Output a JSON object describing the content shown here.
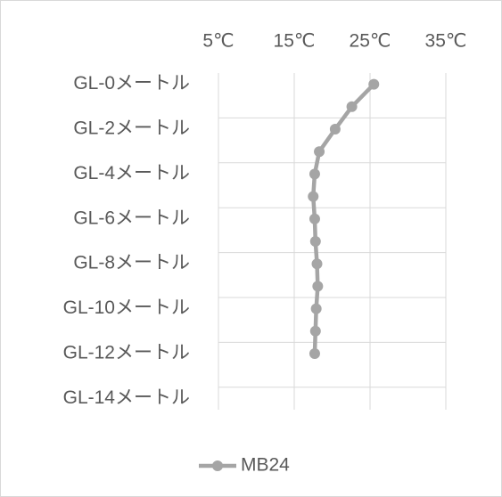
{
  "chart_data": {
    "type": "line",
    "orientation": "horizontal",
    "categories": [
      "GL-0メートル",
      null,
      "GL-2メートル",
      null,
      "GL-4メートル",
      null,
      "GL-6メートル",
      null,
      "GL-8メートル",
      null,
      "GL-10メートル",
      null,
      "GL-12メートル",
      null,
      "GL-14メートル"
    ],
    "series": [
      {
        "name": "MB24",
        "color": "#a5a5a5",
        "values": [
          25.5,
          22.6,
          20.4,
          18.3,
          17.7,
          17.5,
          17.7,
          17.8,
          18.0,
          18.1,
          17.9,
          17.8,
          17.7,
          null,
          null
        ]
      }
    ],
    "xlim": [
      5,
      35
    ],
    "xticks": [
      {
        "value": 5,
        "label": "5℃"
      },
      {
        "value": 15,
        "label": "15℃"
      },
      {
        "value": 25,
        "label": "25℃"
      },
      {
        "value": 35,
        "label": "35℃"
      }
    ],
    "grid": true,
    "legend": "bottom"
  }
}
